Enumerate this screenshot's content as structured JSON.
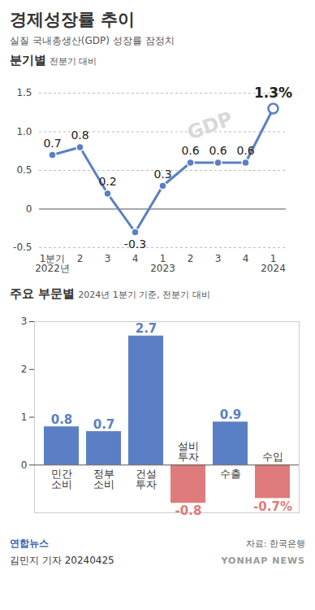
{
  "page": {
    "title": "경제성장률 추이",
    "subtitle": "실질 국내총생산(GDP) 성장률 잠정치",
    "source": "자료: 한국은행",
    "byline": "김민지 기자 20240425",
    "logo": "연합뉴스",
    "watermark": "YONHAP NEWS"
  },
  "chart_data": [
    {
      "type": "line",
      "title": "분기별",
      "subtitle": "전분기 대비",
      "annotation": "GDP",
      "categories": [
        "1분기\n2022년",
        "2",
        "3",
        "4",
        "1\n2023",
        "2",
        "3",
        "4",
        "1\n2024"
      ],
      "values": [
        0.7,
        0.8,
        0.2,
        -0.3,
        0.3,
        0.6,
        0.6,
        0.6,
        1.3
      ],
      "value_labels": [
        "0.7",
        "0.8",
        "0.2",
        "-0.3",
        "0.3",
        "0.6",
        "0.6",
        "0.6",
        "1.3%"
      ],
      "color": "#5b7fc4",
      "marker": "circle",
      "ylim": [
        -0.5,
        1.5
      ],
      "yticks": [
        -0.5,
        0,
        0.5,
        {
          "value": 1,
          "label": "1.0"
        },
        1.5
      ],
      "grid": true,
      "data_labels": true
    },
    {
      "type": "bar",
      "title": "주요 부문별",
      "subtitle": "2024년 1분기 기준, 전분기 대비",
      "categories": [
        "민간\n소비",
        "정부\n소비",
        "건설\n투자",
        "설비\n투자",
        "수출",
        "수입"
      ],
      "values": [
        0.8,
        0.7,
        2.7,
        -0.8,
        0.9,
        -0.7
      ],
      "value_labels": [
        "0.8",
        "0.7",
        "2.7",
        "-0.8",
        "0.9",
        "-0.7%"
      ],
      "colors": [
        "#5b7fc4",
        "#5b7fc4",
        "#5b7fc4",
        "#e07b7b",
        "#5b7fc4",
        "#e07b7b"
      ],
      "ylim": [
        -1,
        3
      ],
      "yticks": [
        0,
        1,
        2,
        3
      ],
      "grid": false,
      "data_labels": true
    }
  ]
}
